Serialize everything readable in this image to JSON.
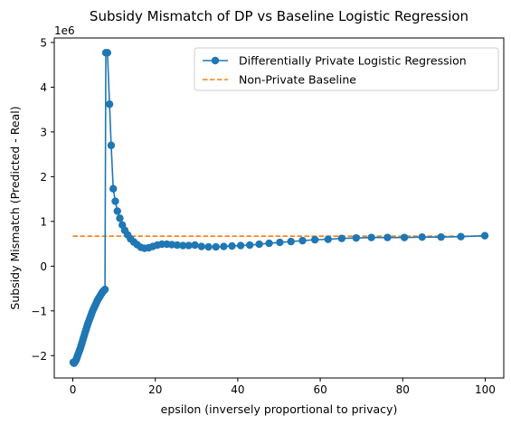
{
  "chart_data": {
    "type": "line",
    "title": "Subsidy Mismatch of DP vs Baseline Logistic Regression",
    "xlabel": "epsilon (inversely proportional to privacy)",
    "ylabel": "Subsidy Mismatch (Predicted - Real)",
    "y_offset_label": "1e6",
    "y_scale": 1000000,
    "xlim": [
      -4.5,
      104.5
    ],
    "ylim": [
      -2.5,
      5.1
    ],
    "xticks": [
      0,
      20,
      40,
      60,
      80,
      100
    ],
    "yticks": [
      -2,
      -1,
      0,
      1,
      2,
      3,
      4,
      5
    ],
    "legend_position": "upper right",
    "series": [
      {
        "name": "Differentially Private Logistic Regression",
        "color": "#1f77b4",
        "style": "solid",
        "marker": "circle",
        "x": [
          0.1,
          0.2,
          0.3,
          0.45,
          0.6,
          0.75,
          0.9,
          1.05,
          1.2,
          1.4,
          1.6,
          1.8,
          2.0,
          2.2,
          2.4,
          2.6,
          2.8,
          3.0,
          3.2,
          3.4,
          3.6,
          3.8,
          4.0,
          4.2,
          4.4,
          4.6,
          4.8,
          5.0,
          5.2,
          5.4,
          5.6,
          5.8,
          6.0,
          6.2,
          6.4,
          6.6,
          6.8,
          7.0,
          7.2,
          7.4,
          7.6,
          7.8,
          8.0,
          8.4,
          8.9,
          9.3,
          9.8,
          10.3,
          10.8,
          11.4,
          12.0,
          12.6,
          13.3,
          14.0,
          14.8,
          15.6,
          16.5,
          17.4,
          18.4,
          19.4,
          20.5,
          21.6,
          22.8,
          24.0,
          25.3,
          26.7,
          28.1,
          29.6,
          31.2,
          32.9,
          34.7,
          36.6,
          38.6,
          40.7,
          42.9,
          45.2,
          47.6,
          50.2,
          52.9,
          55.7,
          58.7,
          61.9,
          65.2,
          68.7,
          72.4,
          76.3,
          80.4,
          84.7,
          89.3,
          94.1,
          99.9
        ],
        "y": [
          -2.15,
          -2.16,
          -2.17,
          -2.15,
          -2.13,
          -2.1,
          -2.07,
          -2.03,
          -1.99,
          -1.94,
          -1.89,
          -1.84,
          -1.78,
          -1.72,
          -1.66,
          -1.6,
          -1.54,
          -1.48,
          -1.42,
          -1.36,
          -1.3,
          -1.25,
          -1.2,
          -1.15,
          -1.1,
          -1.05,
          -1.0,
          -0.96,
          -0.92,
          -0.88,
          -0.84,
          -0.8,
          -0.76,
          -0.73,
          -0.7,
          -0.67,
          -0.64,
          -0.61,
          -0.58,
          -0.56,
          -0.54,
          -0.52,
          4.77,
          4.77,
          3.62,
          2.7,
          1.73,
          1.45,
          1.23,
          1.07,
          0.92,
          0.8,
          0.7,
          0.61,
          0.54,
          0.48,
          0.42,
          0.4,
          0.41,
          0.44,
          0.47,
          0.49,
          0.49,
          0.48,
          0.47,
          0.46,
          0.46,
          0.47,
          0.44,
          0.43,
          0.43,
          0.44,
          0.45,
          0.46,
          0.47,
          0.49,
          0.51,
          0.53,
          0.55,
          0.57,
          0.59,
          0.6,
          0.62,
          0.63,
          0.64,
          0.64,
          0.64,
          0.65,
          0.65,
          0.66,
          0.68
        ]
      },
      {
        "name": "Non-Private Baseline",
        "color": "#ff7f0e",
        "style": "dashed",
        "marker": "none",
        "x": [
          0,
          100
        ],
        "y": [
          0.67,
          0.67
        ]
      }
    ]
  }
}
